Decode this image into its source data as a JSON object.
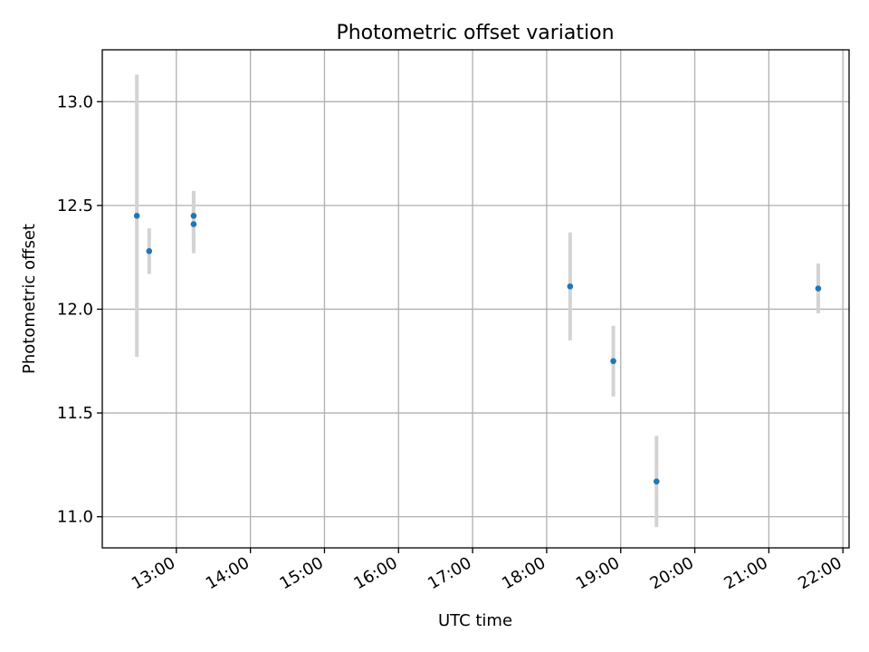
{
  "chart_data": {
    "type": "scatter",
    "title": "Photometric offset variation",
    "xlabel": "UTC time",
    "ylabel": "Photometric offset",
    "x_ticks": [
      "13:00",
      "14:00",
      "15:00",
      "16:00",
      "17:00",
      "18:00",
      "19:00",
      "20:00",
      "21:00",
      "22:00"
    ],
    "y_ticks": [
      "11.0",
      "11.5",
      "12.0",
      "12.5",
      "13.0"
    ],
    "xlim": [
      "12:00",
      "22:05"
    ],
    "ylim": [
      10.85,
      13.25
    ],
    "grid": true,
    "series": [
      {
        "points": [
          {
            "x": "12:28",
            "y": 12.45,
            "err": 0.68
          },
          {
            "x": "12:38",
            "y": 12.28,
            "err": 0.11
          },
          {
            "x": "13:14",
            "y": 12.45,
            "err": 0.12
          },
          {
            "x": "13:14",
            "y": 12.41,
            "err": 0.14
          },
          {
            "x": "18:19",
            "y": 12.11,
            "err": 0.26
          },
          {
            "x": "18:54",
            "y": 11.75,
            "err": 0.17
          },
          {
            "x": "19:29",
            "y": 11.17,
            "err": 0.22
          },
          {
            "x": "21:40",
            "y": 12.1,
            "err": 0.12
          }
        ]
      }
    ],
    "colors": {
      "marker": "#1f77b4",
      "errorbar": "#d3d3d3",
      "grid": "#b0b0b0"
    }
  }
}
